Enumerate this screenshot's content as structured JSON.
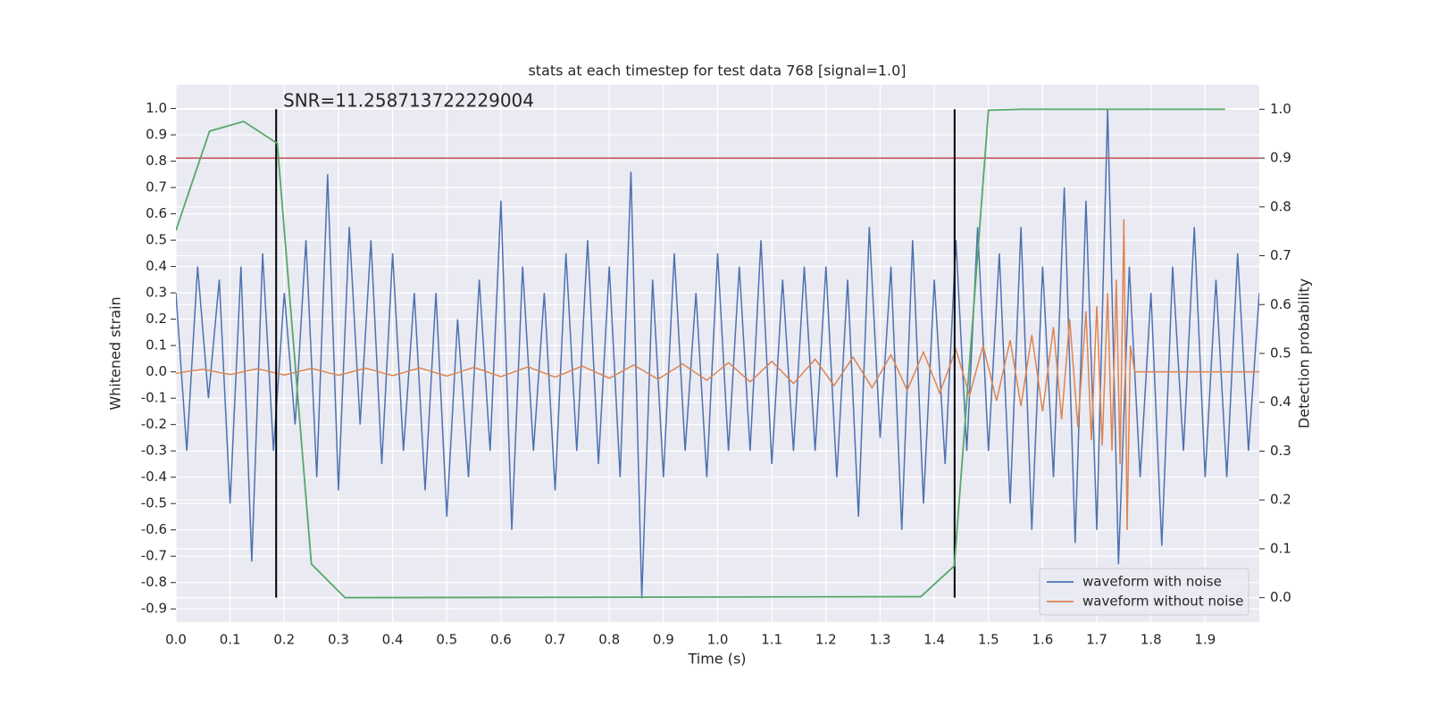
{
  "chart_data": {
    "type": "line",
    "title": "stats at each timestep for test data 768 [signal=1.0]",
    "xlabel": "Time (s)",
    "ylabel": "Whitened strain",
    "y2label": "Detection probability",
    "annotation": "SNR=11.258713722229004",
    "xlim": [
      0,
      2
    ],
    "ylim": [
      -0.95,
      1.09
    ],
    "y2lim": [
      -0.05,
      1.05
    ],
    "xticks": [
      {
        "value": 0,
        "label": "0.0"
      },
      0.1,
      0.2,
      0.3,
      0.4,
      0.5,
      0.6,
      0.7,
      0.8,
      0.9,
      {
        "value": 1,
        "label": "1.0"
      },
      1.1,
      1.2,
      1.3,
      1.4,
      1.5,
      1.6,
      1.7,
      1.8,
      1.9
    ],
    "yticks": [
      -0.9,
      -0.8,
      -0.7,
      -0.6,
      -0.5,
      -0.4,
      -0.3,
      -0.2,
      -0.1,
      {
        "value": 0,
        "label": "0.0"
      },
      0.1,
      0.2,
      0.3,
      0.4,
      0.5,
      0.6,
      0.7,
      0.8,
      0.9,
      {
        "value": 1,
        "label": "1.0"
      }
    ],
    "y2ticks": [
      {
        "value": 0,
        "label": "0.0"
      },
      0.1,
      0.2,
      0.3,
      0.4,
      0.5,
      0.6,
      0.7,
      0.8,
      0.9,
      {
        "value": 1,
        "label": "1.0"
      }
    ],
    "grid": true,
    "legend": "lower right",
    "threshold": 0.9,
    "threshold_color": "#c44e52",
    "vlines": [
      0.185,
      1.4375
    ],
    "vline_color": "#000000",
    "series": [
      {
        "name": "waveform with noise",
        "color": "#4c72b0",
        "x": [
          0,
          0.02,
          0.04,
          0.06,
          0.08,
          0.1,
          0.12,
          0.14,
          0.16,
          0.18,
          0.2,
          0.22,
          0.24,
          0.26,
          0.28,
          0.3,
          0.32,
          0.34,
          0.36,
          0.38,
          0.4,
          0.42,
          0.44,
          0.46,
          0.48,
          0.5,
          0.52,
          0.54,
          0.56,
          0.58,
          0.6,
          0.62,
          0.64,
          0.66,
          0.68,
          0.7,
          0.72,
          0.74,
          0.76,
          0.78,
          0.8,
          0.82,
          0.84,
          0.86,
          0.88,
          0.9,
          0.92,
          0.94,
          0.96,
          0.98,
          1,
          1.02,
          1.04,
          1.06,
          1.08,
          1.1,
          1.12,
          1.14,
          1.16,
          1.18,
          1.2,
          1.22,
          1.24,
          1.26,
          1.28,
          1.3,
          1.32,
          1.34,
          1.36,
          1.38,
          1.4,
          1.42,
          1.44,
          1.46,
          1.48,
          1.5,
          1.52,
          1.54,
          1.56,
          1.58,
          1.6,
          1.62,
          1.64,
          1.66,
          1.68,
          1.7,
          1.72,
          1.74,
          1.76,
          1.78,
          1.8,
          1.82,
          1.84,
          1.86,
          1.88,
          1.9,
          1.92,
          1.94,
          1.96,
          1.98,
          2
        ],
        "values": [
          0.3,
          -0.3,
          0.4,
          -0.1,
          0.35,
          -0.5,
          0.4,
          -0.72,
          0.45,
          -0.3,
          0.3,
          -0.2,
          0.5,
          -0.4,
          0.75,
          -0.45,
          0.55,
          -0.2,
          0.5,
          -0.35,
          0.45,
          -0.3,
          0.3,
          -0.45,
          0.3,
          -0.55,
          0.2,
          -0.4,
          0.35,
          -0.3,
          0.65,
          -0.6,
          0.4,
          -0.3,
          0.3,
          -0.45,
          0.45,
          -0.3,
          0.5,
          -0.35,
          0.4,
          -0.4,
          0.76,
          -0.86,
          0.35,
          -0.4,
          0.45,
          -0.3,
          0.3,
          -0.4,
          0.45,
          -0.3,
          0.4,
          -0.3,
          0.5,
          -0.35,
          0.35,
          -0.3,
          0.4,
          -0.3,
          0.4,
          -0.4,
          0.35,
          -0.55,
          0.55,
          -0.25,
          0.4,
          -0.6,
          0.5,
          -0.5,
          0.35,
          -0.35,
          0.5,
          -0.3,
          0.55,
          -0.3,
          0.45,
          -0.5,
          0.55,
          -0.6,
          0.4,
          -0.4,
          0.7,
          -0.65,
          0.65,
          -0.6,
          1.0,
          -0.73,
          0.4,
          -0.4,
          0.3,
          -0.66,
          0.4,
          -0.3,
          0.55,
          -0.4,
          0.35,
          -0.4,
          0.45,
          -0.3,
          0.3
        ]
      },
      {
        "name": "waveform without noise",
        "color": "#dd8452",
        "x": [
          0,
          0.05,
          0.1,
          0.15,
          0.2,
          0.25,
          0.3,
          0.35,
          0.4,
          0.45,
          0.5,
          0.55,
          0.6,
          0.65,
          0.7,
          0.75,
          0.8,
          0.845,
          0.89,
          0.935,
          0.98,
          1.02,
          1.06,
          1.1,
          1.14,
          1.18,
          1.215,
          1.25,
          1.285,
          1.32,
          1.35,
          1.38,
          1.41,
          1.44,
          1.465,
          1.49,
          1.515,
          1.54,
          1.56,
          1.58,
          1.6,
          1.62,
          1.635,
          1.65,
          1.665,
          1.68,
          1.69,
          1.7,
          1.71,
          1.72,
          1.728,
          1.736,
          1.743,
          1.75,
          1.756,
          1.762,
          1.77,
          2
        ],
        "values": [
          -0.005,
          0.01,
          -0.01,
          0.012,
          -0.012,
          0.013,
          -0.013,
          0.014,
          -0.014,
          0.015,
          -0.016,
          0.017,
          -0.018,
          0.019,
          -0.02,
          0.022,
          -0.024,
          0.026,
          -0.028,
          0.03,
          -0.032,
          0.035,
          -0.038,
          0.04,
          -0.044,
          0.048,
          -0.052,
          0.056,
          -0.06,
          0.065,
          -0.07,
          0.075,
          -0.08,
          0.085,
          -0.09,
          0.1,
          -0.11,
          0.12,
          -0.13,
          0.14,
          -0.15,
          0.17,
          -0.18,
          0.2,
          -0.21,
          0.23,
          -0.26,
          0.25,
          -0.28,
          0.3,
          -0.3,
          0.35,
          -0.35,
          0.58,
          -0.6,
          0.1,
          0.0,
          0.0
        ]
      },
      {
        "color": "#55a868",
        "axis": "y2",
        "x": [
          0,
          0.062,
          0.125,
          0.187,
          0.25,
          0.312,
          1.375,
          1.437,
          1.5,
          1.562,
          1.937
        ],
        "values": [
          0.752,
          0.955,
          0.975,
          0.93,
          0.069,
          0.0,
          0.002,
          0.065,
          0.998,
          1.0,
          1.0
        ]
      }
    ]
  }
}
